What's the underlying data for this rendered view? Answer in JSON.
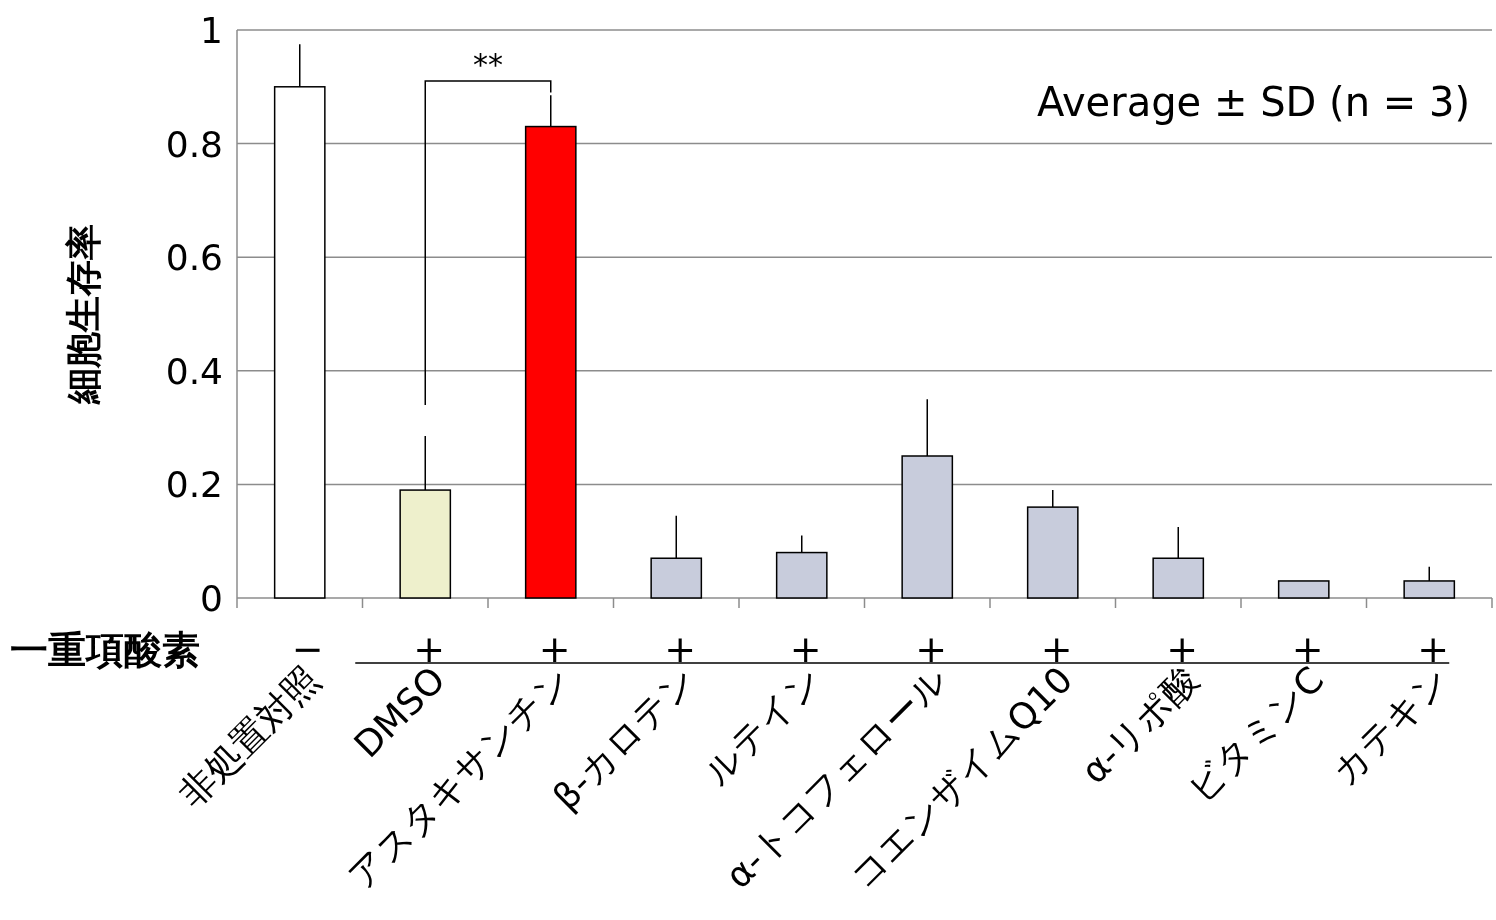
{
  "chart_data": {
    "type": "bar",
    "ylabel": "細胞生存率",
    "categories": [
      "非処置対照",
      "DMSO",
      "アスタキサンチン",
      "β-カロテン",
      "ルテイン",
      "α-トコフェロール",
      "コエンザイムQ10",
      "α-リポ酸",
      "ビタミンC",
      "カテキン"
    ],
    "values": [
      0.9,
      0.19,
      0.83,
      0.07,
      0.08,
      0.25,
      0.16,
      0.07,
      0.03,
      0.03
    ],
    "colors": [
      "#ffffff",
      "#eef0cc",
      "#ff0000",
      "#c8ccdc",
      "#c8ccdc",
      "#c8ccdc",
      "#c8ccdc",
      "#c8ccdc",
      "#c8ccdc",
      "#c8ccdc"
    ],
    "errors": [
      [
        0.9,
        0.975
      ],
      [
        0.19,
        0.285
      ],
      [
        0.83,
        0.885
      ],
      [
        0.07,
        0.145
      ],
      [
        0.08,
        0.11
      ],
      [
        0.25,
        0.35
      ],
      [
        0.16,
        0.19
      ],
      [
        0.07,
        0.125
      ],
      null,
      [
        0.03,
        0.055
      ]
    ],
    "ylim": [
      0,
      1
    ],
    "yticks": [
      0,
      0.2,
      0.4,
      0.6,
      0.8,
      1
    ],
    "grid": "y",
    "annotations": [
      "Average ± SD (n = 3)",
      "**",
      "一重項酸素",
      "−",
      "+",
      "+",
      "+",
      "+",
      "+",
      "+",
      "+",
      "+",
      "+"
    ]
  }
}
